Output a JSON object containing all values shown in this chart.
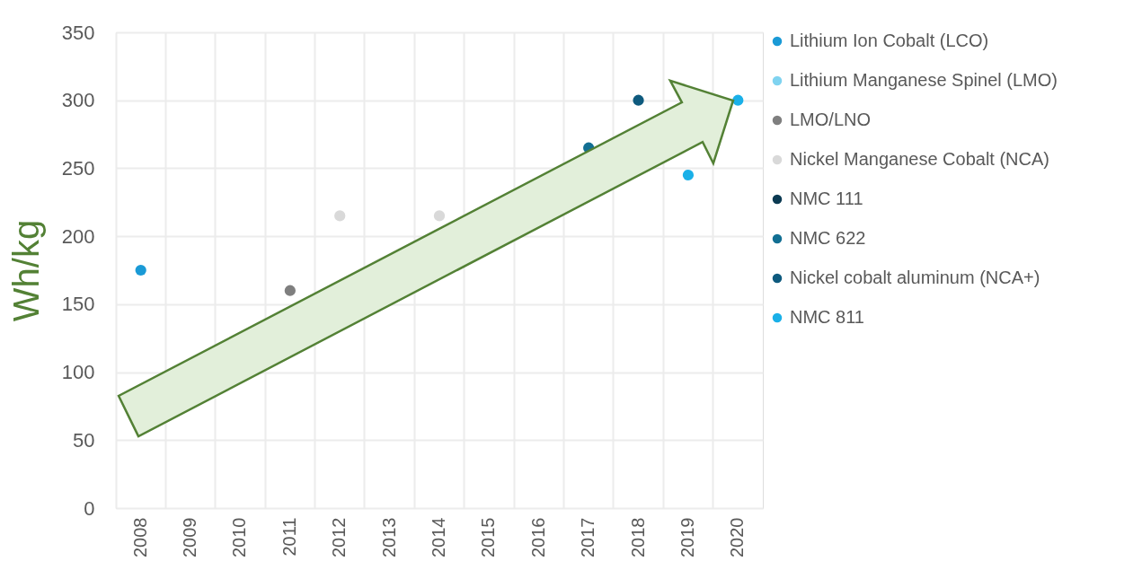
{
  "chart_data": {
    "type": "scatter",
    "ylabel": "Wh/kg",
    "categories": [
      "2008",
      "2009",
      "2010",
      "2011",
      "2012",
      "2013",
      "2014",
      "2015",
      "2016",
      "2017",
      "2018",
      "2019",
      "2020"
    ],
    "series": [
      {
        "name": "Lithium Ion Cobalt (LCO)",
        "color": "#1a9ad6",
        "values": [
          175,
          null,
          null,
          null,
          null,
          null,
          null,
          null,
          null,
          null,
          null,
          null,
          null
        ]
      },
      {
        "name": "Lithium Manganese Spinel (LMO)",
        "color": "#7fd3f0",
        "values": [
          null,
          null,
          null,
          null,
          null,
          null,
          null,
          null,
          null,
          null,
          null,
          null,
          null
        ]
      },
      {
        "name": "LMO/LNO",
        "color": "#7f7f7f",
        "values": [
          null,
          null,
          null,
          160,
          null,
          null,
          null,
          null,
          null,
          null,
          null,
          null,
          null
        ]
      },
      {
        "name": "Nickel Manganese Cobalt (NCA)",
        "color": "#d9d9d9",
        "values": [
          null,
          null,
          null,
          null,
          215,
          null,
          215,
          null,
          null,
          null,
          null,
          null,
          null
        ]
      },
      {
        "name": "NMC 111",
        "color": "#0b3a52",
        "values": [
          null,
          null,
          null,
          null,
          null,
          null,
          null,
          null,
          null,
          null,
          null,
          null,
          null
        ]
      },
      {
        "name": "NMC 622",
        "color": "#126f93",
        "values": [
          null,
          null,
          null,
          null,
          null,
          null,
          null,
          null,
          null,
          265,
          null,
          null,
          null
        ]
      },
      {
        "name": "Nickel cobalt aluminum (NCA+)",
        "color": "#0e5a7e",
        "values": [
          null,
          null,
          null,
          null,
          null,
          null,
          null,
          null,
          null,
          null,
          300,
          null,
          null
        ]
      },
      {
        "name": "NMC 811",
        "color": "#1ab0e8",
        "values": [
          null,
          null,
          null,
          null,
          null,
          null,
          null,
          null,
          null,
          null,
          null,
          245,
          300
        ]
      }
    ],
    "ylim": [
      0,
      350
    ],
    "yticks": [
      0,
      50,
      100,
      150,
      200,
      250,
      300,
      350
    ],
    "grid": true,
    "legend": "right",
    "marker": "circle"
  }
}
